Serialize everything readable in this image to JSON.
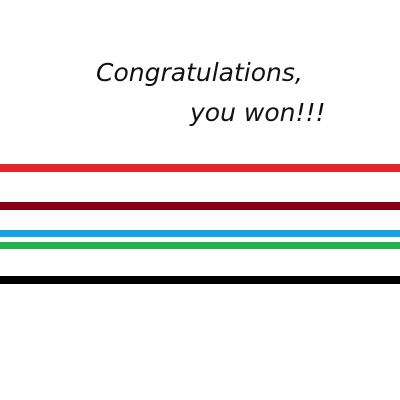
{
  "message": {
    "line1": "Congratulations,",
    "line2": "you won!!!"
  },
  "stripes": [
    {
      "name": "red",
      "color": "#e0252b"
    },
    {
      "name": "maroon",
      "color": "#880015"
    },
    {
      "name": "blue",
      "color": "#14a3e0"
    },
    {
      "name": "green",
      "color": "#22b14c"
    },
    {
      "name": "black",
      "color": "#000000"
    }
  ]
}
